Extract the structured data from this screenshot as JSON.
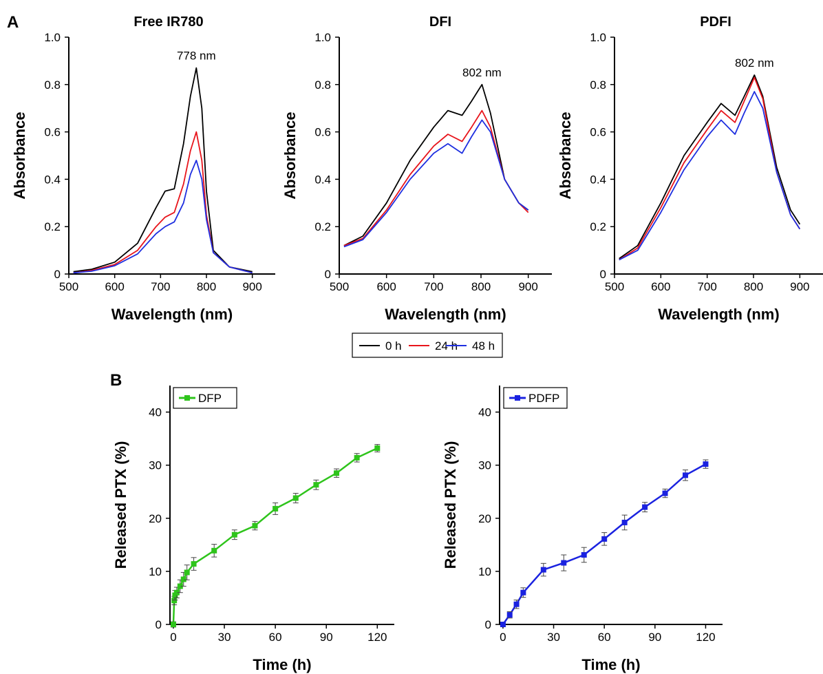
{
  "panels": {
    "a_label": "A",
    "b_label": "B"
  },
  "legend_a": [
    {
      "label": "0 h",
      "color": "#000000"
    },
    {
      "label": "24 h",
      "color": "#e8141b"
    },
    {
      "label": "48 h",
      "color": "#1e2fe0"
    }
  ],
  "chart_data": [
    {
      "type": "line",
      "title": "Free IR780",
      "xlabel": "Wavelength (nm)",
      "ylabel": "Absorbance",
      "xlim": [
        500,
        950
      ],
      "ylim": [
        0,
        1.0
      ],
      "xticks": [
        "500",
        "600",
        "700",
        "800",
        "900"
      ],
      "yticks": [
        "0",
        "0.2",
        "0.4",
        "0.6",
        "0.8",
        "1.0"
      ],
      "annotation": {
        "text": "778 nm",
        "x": 778
      },
      "x": [
        510,
        550,
        600,
        650,
        690,
        710,
        730,
        750,
        765,
        778,
        790,
        800,
        815,
        850,
        900
      ],
      "series": [
        {
          "name": "0 h",
          "color": "#000000",
          "values": [
            0.01,
            0.02,
            0.05,
            0.13,
            0.28,
            0.35,
            0.36,
            0.55,
            0.75,
            0.87,
            0.7,
            0.35,
            0.1,
            0.03,
            0.01
          ]
        },
        {
          "name": "24 h",
          "color": "#e8141b",
          "values": [
            0.005,
            0.015,
            0.04,
            0.1,
            0.2,
            0.24,
            0.26,
            0.38,
            0.52,
            0.6,
            0.48,
            0.25,
            0.09,
            0.03,
            0.005
          ]
        },
        {
          "name": "48 h",
          "color": "#1e2fe0",
          "values": [
            0.005,
            0.012,
            0.035,
            0.085,
            0.17,
            0.2,
            0.22,
            0.3,
            0.42,
            0.48,
            0.4,
            0.23,
            0.09,
            0.03,
            0.005
          ]
        }
      ]
    },
    {
      "type": "line",
      "title": "DFI",
      "xlabel": "Wavelength (nm)",
      "ylabel": "Absorbance",
      "xlim": [
        500,
        950
      ],
      "ylim": [
        0,
        1.0
      ],
      "xticks": [
        "500",
        "600",
        "700",
        "800",
        "900"
      ],
      "yticks": [
        "0",
        "0.2",
        "0.4",
        "0.6",
        "0.8",
        "1.0"
      ],
      "annotation": {
        "text": "802 nm",
        "x": 802
      },
      "x": [
        510,
        550,
        600,
        650,
        700,
        730,
        760,
        780,
        802,
        820,
        850,
        880,
        900
      ],
      "series": [
        {
          "name": "0 h",
          "color": "#000000",
          "values": [
            0.12,
            0.16,
            0.3,
            0.48,
            0.62,
            0.69,
            0.67,
            0.73,
            0.8,
            0.68,
            0.4,
            0.3,
            0.27
          ]
        },
        {
          "name": "24 h",
          "color": "#e8141b",
          "values": [
            0.12,
            0.15,
            0.27,
            0.42,
            0.54,
            0.59,
            0.56,
            0.62,
            0.69,
            0.62,
            0.4,
            0.3,
            0.26
          ]
        },
        {
          "name": "48 h",
          "color": "#1e2fe0",
          "values": [
            0.115,
            0.145,
            0.26,
            0.4,
            0.51,
            0.55,
            0.51,
            0.58,
            0.65,
            0.6,
            0.4,
            0.3,
            0.27
          ]
        }
      ]
    },
    {
      "type": "line",
      "title": "PDFI",
      "xlabel": "Wavelength (nm)",
      "ylabel": "Absorbance",
      "xlim": [
        500,
        950
      ],
      "ylim": [
        0,
        1.0
      ],
      "xticks": [
        "500",
        "600",
        "700",
        "800",
        "900"
      ],
      "yticks": [
        "0",
        "0.2",
        "0.4",
        "0.6",
        "0.8",
        "1.0"
      ],
      "annotation": {
        "text": "802 nm",
        "x": 802
      },
      "x": [
        510,
        550,
        600,
        650,
        700,
        730,
        760,
        780,
        802,
        820,
        850,
        880,
        900
      ],
      "series": [
        {
          "name": "0 h",
          "color": "#000000",
          "values": [
            0.065,
            0.12,
            0.3,
            0.5,
            0.64,
            0.72,
            0.67,
            0.75,
            0.84,
            0.75,
            0.45,
            0.27,
            0.21
          ]
        },
        {
          "name": "24 h",
          "color": "#e8141b",
          "values": [
            0.06,
            0.11,
            0.28,
            0.47,
            0.61,
            0.69,
            0.64,
            0.73,
            0.83,
            0.74,
            0.43,
            0.25,
            0.19
          ]
        },
        {
          "name": "48 h",
          "color": "#1e2fe0",
          "values": [
            0.06,
            0.1,
            0.26,
            0.44,
            0.58,
            0.65,
            0.59,
            0.68,
            0.77,
            0.7,
            0.43,
            0.25,
            0.19
          ]
        }
      ]
    },
    {
      "type": "line",
      "xlabel": "Time (h)",
      "ylabel": "Released PTX (%)",
      "xlim": [
        -2,
        130
      ],
      "ylim": [
        0,
        45
      ],
      "xticks": [
        "0",
        "30",
        "60",
        "90",
        "120"
      ],
      "yticks": [
        "0",
        "10",
        "20",
        "30",
        "40"
      ],
      "legend": "top-left",
      "series": [
        {
          "name": "DFP",
          "color": "#2ec41b",
          "x": [
            0,
            0.5,
            1,
            2,
            4,
            6,
            8,
            12,
            24,
            36,
            48,
            60,
            72,
            84,
            96,
            108,
            120
          ],
          "values": [
            0,
            4.5,
            5.5,
            6.0,
            7.2,
            8.5,
            9.8,
            11.4,
            13.9,
            16.9,
            18.6,
            21.8,
            23.8,
            26.3,
            28.5,
            31.4,
            33.2
          ],
          "err": [
            0.5,
            0.8,
            0.9,
            1.0,
            1.2,
            1.3,
            1.4,
            1.2,
            1.2,
            0.9,
            0.8,
            1.1,
            0.9,
            0.9,
            0.8,
            0.8,
            0.7
          ]
        }
      ]
    },
    {
      "type": "line",
      "xlabel": "Time (h)",
      "ylabel": "Released PTX (%)",
      "xlim": [
        -2,
        130
      ],
      "ylim": [
        0,
        45
      ],
      "xticks": [
        "0",
        "30",
        "60",
        "90",
        "120"
      ],
      "yticks": [
        "0",
        "10",
        "20",
        "30",
        "40"
      ],
      "legend": "top-left",
      "series": [
        {
          "name": "PDFP",
          "color": "#1a22e0",
          "x": [
            0,
            4,
            8,
            12,
            24,
            36,
            48,
            60,
            72,
            84,
            96,
            108,
            120
          ],
          "values": [
            0,
            1.8,
            3.8,
            6.0,
            10.3,
            11.6,
            13.1,
            16.1,
            19.2,
            22.1,
            24.7,
            28.1,
            30.2
          ],
          "err": [
            0.3,
            0.6,
            0.8,
            0.9,
            1.2,
            1.5,
            1.4,
            1.2,
            1.4,
            0.9,
            0.8,
            1.0,
            0.8
          ]
        }
      ]
    }
  ]
}
